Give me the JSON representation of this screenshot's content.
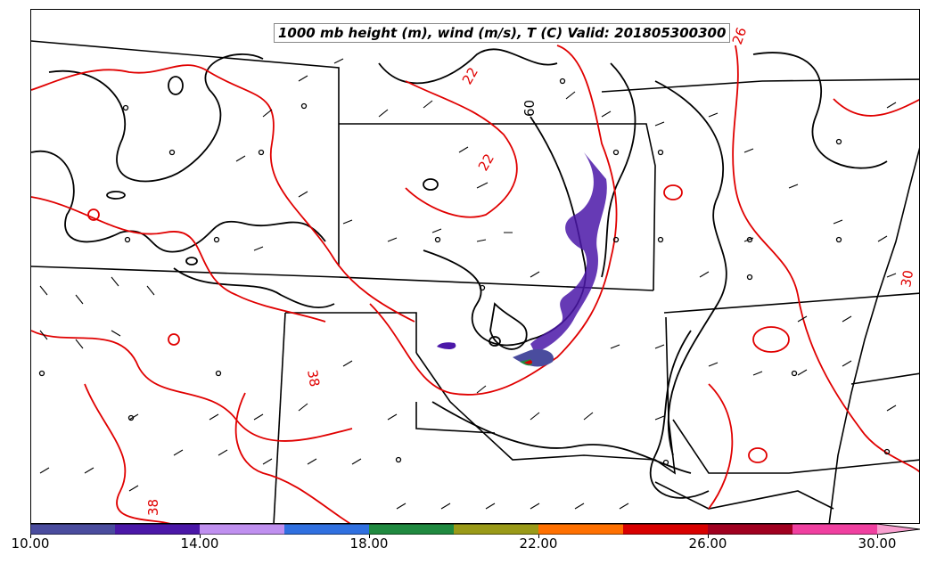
{
  "title": "1000 mb height (m), wind (m/s), T (C) Valid: 201805300300",
  "colors": {
    "background": "#ffffff",
    "state_borders": "#000000",
    "height_contours": "#000000",
    "temperature_contours": "#e00000"
  },
  "contour_labels": {
    "temperature": [
      "22",
      "22",
      "26",
      "38",
      "38",
      "30"
    ],
    "height": [
      "60"
    ]
  },
  "colorbar": {
    "min": 10.0,
    "max": 30.0,
    "extend": "max",
    "tick_labels": [
      "10.00",
      "14.00",
      "18.00",
      "22.00",
      "26.00",
      "30.00"
    ],
    "tick_values": [
      10,
      14,
      18,
      22,
      26,
      30
    ],
    "bins": [
      {
        "from": 10,
        "to": 12,
        "color": "#4a4c9e"
      },
      {
        "from": 12,
        "to": 14,
        "color": "#4b18a8"
      },
      {
        "from": 14,
        "to": 16,
        "color": "#c090f0"
      },
      {
        "from": 16,
        "to": 18,
        "color": "#3070e0"
      },
      {
        "from": 18,
        "to": 20,
        "color": "#208a40"
      },
      {
        "from": 20,
        "to": 22,
        "color": "#9a9a18"
      },
      {
        "from": 22,
        "to": 24,
        "color": "#ff7000"
      },
      {
        "from": 24,
        "to": 26,
        "color": "#d80000"
      },
      {
        "from": 26,
        "to": 28,
        "color": "#a00020"
      },
      {
        "from": 28,
        "to": 30,
        "color": "#f040a0"
      }
    ],
    "over_color": "#f8a0d0"
  }
}
